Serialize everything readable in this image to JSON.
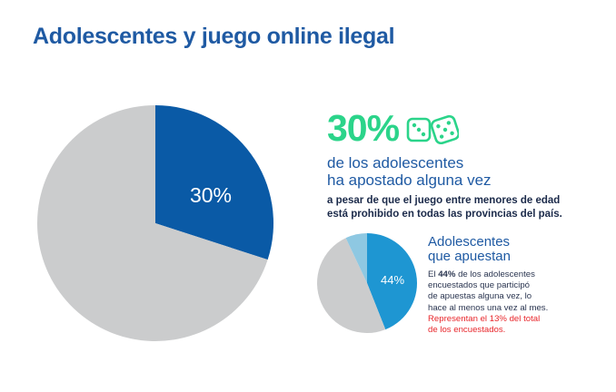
{
  "title": "Adolescentes y juego online ilegal",
  "stat": "30%",
  "headline": [
    "de los adolescentes",
    "ha apostado alguna vez"
  ],
  "subline": [
    "a pesar de que el juego entre menores de edad",
    "está prohibido en todas las provincias del país."
  ],
  "small_title": [
    "Adolescentes",
    "que apuestan"
  ],
  "small_text": {
    "line1_a": "El ",
    "line1_b": "44%",
    "line1_c": " de los adolescentes",
    "lines": [
      "encuestados que participó",
      "de apuestas alguna vez, lo",
      "hace al menos una vez al mes."
    ],
    "red_lines": [
      "Representan el 13% del total",
      "de los encuestados."
    ]
  },
  "colors": {
    "dark_blue": "#0a5aa6",
    "gray": "#cbcccd",
    "mid_blue": "#1e96d2",
    "light_blue": "#8ec8e2",
    "green": "#2bd48a",
    "red": "#e8262b"
  },
  "chart_data": [
    {
      "type": "pie",
      "categories": [
        "",
        ""
      ],
      "values": [
        30,
        70
      ],
      "data_labels": [
        "30%",
        ""
      ]
    },
    {
      "type": "pie",
      "categories": [
        "",
        "",
        ""
      ],
      "values": [
        44,
        49,
        7
      ],
      "data_labels": [
        "44%",
        "",
        ""
      ]
    }
  ]
}
